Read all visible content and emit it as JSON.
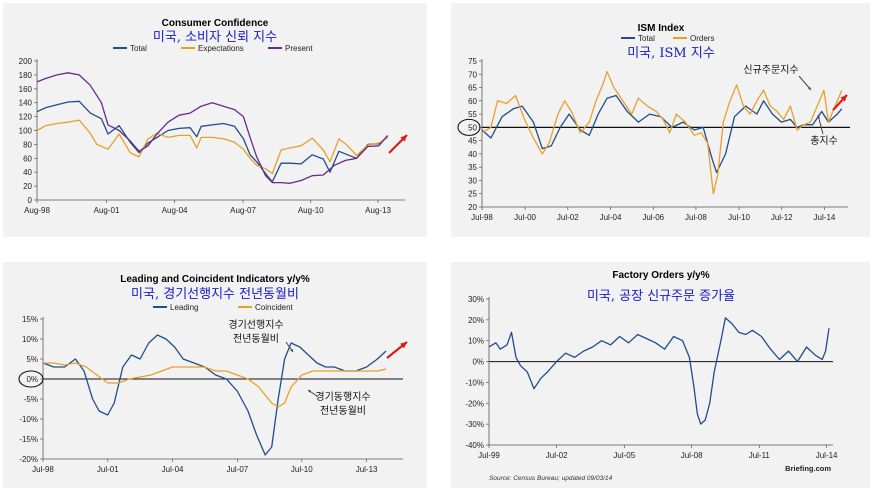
{
  "chart_data": [
    {
      "type": "line",
      "title": "Consumer Confidence",
      "subtitle": "미국, 소비자 신뢰 지수",
      "legend": [
        "Total",
        "Expectations",
        "Present"
      ],
      "xlabel": "",
      "ylabel": "",
      "ylim": [
        0,
        200
      ],
      "yticks": [
        "200",
        "180",
        "160",
        "140",
        "120",
        "100",
        "80",
        "60",
        "40",
        "20",
        "0"
      ],
      "xticks": [
        "Aug-98",
        "Aug-01",
        "Aug-04",
        "Aug-07",
        "Aug-10",
        "Aug-13"
      ],
      "xrange": [
        1998.6,
        2015.0
      ],
      "series": [
        {
          "name": "Total",
          "color": "#1f4e8c",
          "x": [
            1998.6,
            1999.0,
            1999.5,
            2000.0,
            2000.5,
            2001.0,
            2001.5,
            2001.8,
            2002.3,
            2002.8,
            2003.2,
            2003.6,
            2004.0,
            2004.5,
            2005.0,
            2005.5,
            2005.8,
            2006.0,
            2006.5,
            2007.0,
            2007.5,
            2007.9,
            2008.2,
            2008.5,
            2008.9,
            2009.2,
            2009.6,
            2010.0,
            2010.5,
            2011.0,
            2011.5,
            2011.8,
            2012.2,
            2012.6,
            2013.0,
            2013.5,
            2014.0,
            2014.4
          ],
          "values": [
            127,
            133,
            137,
            141,
            142,
            125,
            117,
            95,
            107,
            83,
            68,
            82,
            90,
            100,
            103,
            104,
            91,
            106,
            108,
            110,
            106,
            88,
            65,
            55,
            38,
            26,
            53,
            53,
            52,
            65,
            59,
            40,
            70,
            65,
            60,
            80,
            81,
            91
          ]
        },
        {
          "name": "Expectations",
          "color": "#e8a02c",
          "x": [
            1998.6,
            1999.0,
            1999.5,
            2000.0,
            2000.5,
            2001.0,
            2001.3,
            2001.8,
            2002.3,
            2002.8,
            2003.2,
            2003.6,
            2004.0,
            2004.5,
            2005.0,
            2005.5,
            2005.8,
            2006.0,
            2006.5,
            2007.0,
            2007.5,
            2007.9,
            2008.2,
            2008.5,
            2008.9,
            2009.2,
            2009.6,
            2010.0,
            2010.5,
            2011.0,
            2011.5,
            2011.8,
            2012.2,
            2012.6,
            2013.0,
            2013.5,
            2014.0,
            2014.4
          ],
          "values": [
            100,
            107,
            110,
            112,
            115,
            96,
            80,
            73,
            95,
            68,
            62,
            88,
            96,
            90,
            93,
            93,
            75,
            90,
            90,
            88,
            83,
            73,
            60,
            50,
            45,
            38,
            72,
            75,
            78,
            89,
            72,
            55,
            88,
            78,
            64,
            79,
            82,
            90
          ]
        },
        {
          "name": "Present",
          "color": "#6a2a8c",
          "x": [
            1998.6,
            1999.0,
            1999.5,
            2000.0,
            2000.5,
            2001.0,
            2001.5,
            2001.8,
            2002.3,
            2002.8,
            2003.2,
            2003.6,
            2004.0,
            2004.5,
            2005.0,
            2005.5,
            2006.0,
            2006.5,
            2007.0,
            2007.5,
            2007.9,
            2008.2,
            2008.5,
            2008.9,
            2009.2,
            2009.6,
            2010.0,
            2010.5,
            2011.0,
            2011.5,
            2012.0,
            2012.5,
            2013.0,
            2013.5,
            2014.0,
            2014.4
          ],
          "values": [
            170,
            175,
            180,
            183,
            180,
            165,
            140,
            108,
            100,
            85,
            70,
            78,
            95,
            112,
            122,
            125,
            135,
            140,
            135,
            130,
            120,
            90,
            62,
            35,
            25,
            25,
            24,
            28,
            35,
            36,
            50,
            57,
            60,
            77,
            78,
            93
          ]
        }
      ]
    },
    {
      "type": "line",
      "title": "ISM Index",
      "subtitle": "미국, ISM 지수",
      "legend": [
        "Total",
        "Orders"
      ],
      "ylim": [
        20,
        75
      ],
      "yticks": [
        "75",
        "70",
        "65",
        "60",
        "55",
        "50",
        "45",
        "40",
        "35",
        "30",
        "25",
        "20"
      ],
      "xticks": [
        "Jul-98",
        "Jul-00",
        "Jul-02",
        "Jul-04",
        "Jul-06",
        "Jul-08",
        "Jul-10",
        "Jul-12",
        "Jul-14"
      ],
      "xrange": [
        1998.5,
        2014.7
      ],
      "reference_line": 50,
      "annotations": [
        "신규주문지수",
        "총지수"
      ],
      "series": [
        {
          "name": "Total",
          "color": "#1f4e8c",
          "x": [
            1998.5,
            1998.9,
            1999.4,
            1999.9,
            2000.3,
            2000.8,
            2001.2,
            2001.6,
            2002.0,
            2002.4,
            2002.9,
            2003.3,
            2003.7,
            2004.1,
            2004.5,
            2005.0,
            2005.5,
            2006.0,
            2006.5,
            2007.0,
            2007.5,
            2008.0,
            2008.4,
            2008.8,
            2009.0,
            2009.4,
            2009.8,
            2010.3,
            2010.8,
            2011.1,
            2011.5,
            2011.9,
            2012.3,
            2012.6,
            2012.9,
            2013.3,
            2013.7,
            2014.0,
            2014.4,
            2014.6
          ],
          "values": [
            49,
            46,
            54,
            57,
            58,
            52,
            42,
            43,
            50,
            55,
            49,
            47,
            55,
            61,
            62,
            56,
            52,
            55,
            54,
            50,
            52,
            49,
            50,
            38,
            33,
            40,
            54,
            58,
            55,
            60,
            55,
            52,
            53,
            50,
            51,
            51,
            56,
            52,
            55,
            57
          ]
        },
        {
          "name": "Orders",
          "color": "#e8a02c",
          "x": [
            1998.5,
            1998.9,
            1999.2,
            1999.6,
            2000.0,
            2000.4,
            2000.8,
            2001.2,
            2001.5,
            2001.9,
            2002.2,
            2002.5,
            2002.9,
            2003.3,
            2003.6,
            2003.9,
            2004.1,
            2004.4,
            2004.8,
            2005.2,
            2005.5,
            2005.9,
            2006.3,
            2006.6,
            2006.9,
            2007.2,
            2007.6,
            2008.0,
            2008.3,
            2008.6,
            2008.85,
            2009.05,
            2009.3,
            2009.6,
            2009.9,
            2010.2,
            2010.5,
            2010.8,
            2011.1,
            2011.4,
            2011.7,
            2012.0,
            2012.3,
            2012.6,
            2012.9,
            2013.2,
            2013.5,
            2013.8,
            2014.0,
            2014.3,
            2014.6
          ],
          "values": [
            48,
            50,
            60,
            59,
            62,
            53,
            46,
            40,
            44,
            55,
            60,
            56,
            48,
            52,
            60,
            66,
            71,
            65,
            60,
            55,
            61,
            58,
            56,
            53,
            48,
            55,
            52,
            47,
            48,
            44,
            25,
            32,
            52,
            60,
            66,
            58,
            55,
            60,
            64,
            58,
            56,
            53,
            58,
            49,
            51,
            52,
            58,
            64,
            52,
            58,
            64
          ]
        }
      ]
    },
    {
      "type": "line",
      "title": "Leading and Coincident Indicators y/y%",
      "subtitle": "미국, 경기선행지수 전년동월비",
      "legend": [
        "Leading",
        "Coincident"
      ],
      "ylim": [
        -20,
        15
      ],
      "yticks": [
        "15%",
        "10%",
        "5%",
        "0%",
        "-5%",
        "-10%",
        "-15%",
        "-20%"
      ],
      "xticks": [
        "Jul-98",
        "Jul-01",
        "Jul-04",
        "Jul-07",
        "Jul-10",
        "Jul-13"
      ],
      "xrange": [
        1998.5,
        2015.0
      ],
      "annotations": [
        "경기선행지수",
        "전년동월비",
        "경기동행지수",
        "전년동월비"
      ],
      "series": [
        {
          "name": "Leading",
          "color": "#1f4e8c",
          "x": [
            1998.5,
            1999.0,
            1999.5,
            2000.0,
            2000.4,
            2000.8,
            2001.1,
            2001.5,
            2001.8,
            2002.2,
            2002.6,
            2003.0,
            2003.4,
            2003.8,
            2004.2,
            2004.6,
            2005.0,
            2005.5,
            2006.0,
            2006.5,
            2007.0,
            2007.5,
            2008.0,
            2008.4,
            2008.8,
            2009.1,
            2009.4,
            2009.7,
            2010.0,
            2010.4,
            2010.8,
            2011.2,
            2011.6,
            2012.0,
            2012.5,
            2013.0,
            2013.5,
            2014.0,
            2014.4
          ],
          "values": [
            4,
            3,
            3,
            5,
            2,
            -5,
            -8,
            -9,
            -6,
            3,
            6,
            5,
            9,
            11,
            10,
            8,
            5,
            4,
            3,
            1,
            0,
            -3,
            -8,
            -14,
            -19,
            -17,
            -5,
            5,
            9,
            8,
            6,
            4,
            3,
            3,
            2,
            2,
            3,
            5,
            7
          ]
        },
        {
          "name": "Coincident",
          "color": "#e8a02c",
          "x": [
            1998.5,
            1999.0,
            1999.5,
            2000.0,
            2000.5,
            2001.0,
            2001.5,
            2002.0,
            2002.5,
            2003.0,
            2003.5,
            2004.0,
            2004.5,
            2005.0,
            2005.5,
            2006.0,
            2006.5,
            2007.0,
            2007.5,
            2008.0,
            2008.5,
            2008.8,
            2009.1,
            2009.4,
            2009.7,
            2010.0,
            2010.5,
            2011.0,
            2011.5,
            2012.0,
            2012.5,
            2013.0,
            2013.5,
            2014.0,
            2014.4
          ],
          "values": [
            4,
            4,
            3.5,
            4,
            3,
            1,
            -1,
            -1,
            0,
            0.5,
            1,
            2,
            3,
            3,
            3,
            3,
            2,
            2,
            1,
            0,
            -2,
            -4,
            -6,
            -7,
            -6,
            -2,
            1,
            2,
            2,
            2,
            2,
            2,
            2,
            2,
            2.5
          ]
        }
      ]
    },
    {
      "type": "line",
      "title": "Factory Orders y/y%",
      "subtitle": "미국, 공장 신규주문 증가율",
      "ylim": [
        -40,
        30
      ],
      "yticks": [
        "30%",
        "20%",
        "10%",
        "0%",
        "-10%",
        "-20%",
        "-30%",
        "-40%"
      ],
      "xticks": [
        "Jul-99",
        "Jul-02",
        "Jul-05",
        "Jul-08",
        "Jul-11",
        "Jul-14"
      ],
      "xrange": [
        1999.5,
        2014.6
      ],
      "source": "Source: Census Bureau; updated 09/03/14",
      "brand": "Briefing.com",
      "series": [
        {
          "name": "Factory Orders",
          "color": "#1f4e8c",
          "x": [
            1999.5,
            1999.8,
            2000.0,
            2000.3,
            2000.5,
            2000.7,
            2000.9,
            2001.2,
            2001.5,
            2001.8,
            2002.1,
            2002.5,
            2002.9,
            2003.3,
            2003.7,
            2004.1,
            2004.5,
            2004.9,
            2005.3,
            2005.7,
            2006.1,
            2006.5,
            2006.9,
            2007.3,
            2007.7,
            2008.1,
            2008.4,
            2008.6,
            2008.75,
            2008.9,
            2009.1,
            2009.3,
            2009.5,
            2009.8,
            2010.0,
            2010.3,
            2010.6,
            2010.9,
            2011.2,
            2011.6,
            2012.0,
            2012.4,
            2012.8,
            2013.2,
            2013.6,
            2014.0,
            2014.3,
            2014.45,
            2014.6
          ],
          "values": [
            7,
            9,
            6,
            8,
            14,
            2,
            -2,
            -5,
            -13,
            -8,
            -5,
            0,
            4,
            2,
            5,
            7,
            10,
            8,
            12,
            9,
            13,
            11,
            9,
            6,
            12,
            10,
            2,
            -12,
            -25,
            -30,
            -28,
            -20,
            -5,
            10,
            21,
            18,
            14,
            13,
            15,
            12,
            6,
            1,
            5,
            0,
            7,
            3,
            1,
            5,
            16
          ]
        }
      ]
    }
  ]
}
